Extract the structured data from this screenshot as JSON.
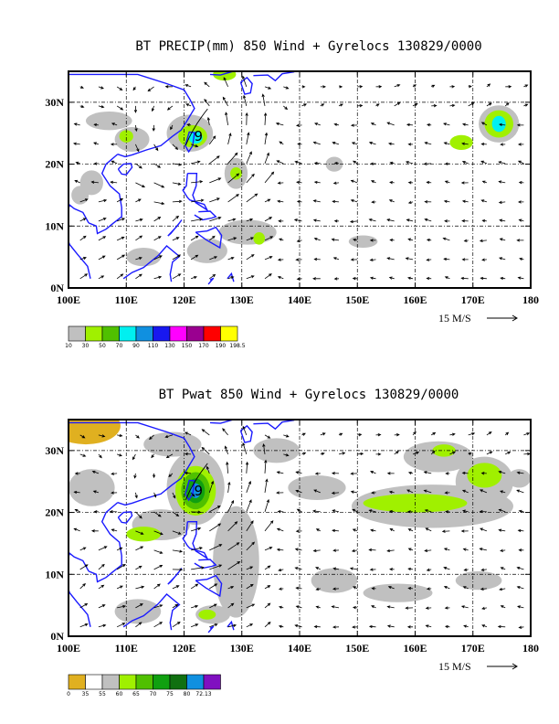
{
  "chart_data": [
    {
      "type": "heatmap",
      "title": "BT PRECIP(mm) 850 Wind + Gyrelocs 130829/0000",
      "x_tick_labels": [
        "100E",
        "110E",
        "120E",
        "130E",
        "140E",
        "150E",
        "160E",
        "170E",
        "180"
      ],
      "y_tick_labels": [
        "0N",
        "10N",
        "20N",
        "30N"
      ],
      "x_range": [
        100,
        180
      ],
      "y_range": [
        0,
        35
      ],
      "vector_scale_label": "15 M/S",
      "colorbar_labels": [
        "10",
        "30",
        "50",
        "70",
        "90",
        "110",
        "130",
        "150",
        "170",
        "190",
        "198.5"
      ],
      "colorbar_colors": [
        "#c0c0c0",
        "#a0f000",
        "#50c000",
        "#00f0f0",
        "#1090e0",
        "#1818f0",
        "#ff00ff",
        "#9a0090",
        "#ff0000",
        "#ffff00"
      ],
      "gyre_marker": {
        "label": "9",
        "lon": 122.5,
        "lat": 24.5
      },
      "precip_regions": [
        {
          "lon": 121,
          "lat": 25,
          "rx": 4,
          "ry": 3,
          "level": 0
        },
        {
          "lon": 121.5,
          "lat": 24.5,
          "rx": 2.5,
          "ry": 1.8,
          "level": 1
        },
        {
          "lon": 122,
          "lat": 24.3,
          "rx": 1.2,
          "ry": 1,
          "level": 3
        },
        {
          "lon": 111,
          "lat": 24,
          "rx": 3,
          "ry": 2,
          "level": 0
        },
        {
          "lon": 110,
          "lat": 24.5,
          "rx": 1.2,
          "ry": 1,
          "level": 1
        },
        {
          "lon": 127,
          "lat": 34.5,
          "rx": 2,
          "ry": 1,
          "level": 1
        },
        {
          "lon": 129,
          "lat": 18.5,
          "rx": 2,
          "ry": 2.5,
          "level": 0
        },
        {
          "lon": 129,
          "lat": 18.5,
          "rx": 1,
          "ry": 1,
          "level": 1
        },
        {
          "lon": 174.5,
          "lat": 26.5,
          "rx": 3.5,
          "ry": 3,
          "level": 0
        },
        {
          "lon": 174.5,
          "lat": 26.5,
          "rx": 2.5,
          "ry": 2.2,
          "level": 1
        },
        {
          "lon": 174.5,
          "lat": 26.5,
          "rx": 1.2,
          "ry": 1.3,
          "level": 3
        },
        {
          "lon": 168,
          "lat": 23.5,
          "rx": 2,
          "ry": 1.2,
          "level": 1
        },
        {
          "lon": 146,
          "lat": 20,
          "rx": 1.5,
          "ry": 1.2,
          "level": 0
        },
        {
          "lon": 131,
          "lat": 9,
          "rx": 5,
          "ry": 2,
          "level": 0
        },
        {
          "lon": 133,
          "lat": 8,
          "rx": 1,
          "ry": 1,
          "level": 1
        },
        {
          "lon": 113,
          "lat": 5,
          "rx": 3,
          "ry": 1.5,
          "level": 0
        },
        {
          "lon": 124,
          "lat": 6,
          "rx": 3.5,
          "ry": 2,
          "level": 0
        },
        {
          "lon": 151,
          "lat": 7.5,
          "rx": 2.5,
          "ry": 1,
          "level": 0
        },
        {
          "lon": 104,
          "lat": 17,
          "rx": 2,
          "ry": 2,
          "level": 0
        },
        {
          "lon": 102,
          "lat": 15,
          "rx": 1.5,
          "ry": 1.5,
          "level": 0
        },
        {
          "lon": 107,
          "lat": 27,
          "rx": 4,
          "ry": 1.5,
          "level": 0
        }
      ]
    },
    {
      "type": "heatmap",
      "title": "BT Pwat 850 Wind + Gyrelocs 130829/0000",
      "x_tick_labels": [
        "100E",
        "110E",
        "120E",
        "130E",
        "140E",
        "150E",
        "160E",
        "170E",
        "180"
      ],
      "y_tick_labels": [
        "0N",
        "10N",
        "20N",
        "30N"
      ],
      "x_range": [
        100,
        180
      ],
      "y_range": [
        0,
        35
      ],
      "vector_scale_label": "15 M/S",
      "colorbar_labels": [
        "0",
        "35",
        "55",
        "60",
        "65",
        "70",
        "75",
        "80",
        "72.13"
      ],
      "colorbar_colors": [
        "#e0b020",
        "#ffffff",
        "#c0c0c0",
        "#a0f000",
        "#50c000",
        "#10a010",
        "#107010",
        "#1090e0",
        "#8010c0"
      ],
      "gyre_marker": {
        "label": "9",
        "lon": 122.5,
        "lat": 23.5
      },
      "pwat_regions": [
        {
          "lon": 103,
          "lat": 34,
          "rx": 6,
          "ry": 3,
          "level": 0
        },
        {
          "lon": 122,
          "lat": 24,
          "rx": 5,
          "ry": 6,
          "level": 2
        },
        {
          "lon": 122,
          "lat": 23.5,
          "rx": 3.5,
          "ry": 4,
          "level": 3
        },
        {
          "lon": 122,
          "lat": 23.5,
          "rx": 2.5,
          "ry": 3,
          "level": 4
        },
        {
          "lon": 122,
          "lat": 23.5,
          "rx": 1.6,
          "ry": 2,
          "level": 5
        },
        {
          "lon": 122,
          "lat": 23.5,
          "rx": 0.9,
          "ry": 1.2,
          "level": 7
        },
        {
          "lon": 116,
          "lat": 18,
          "rx": 5,
          "ry": 2.5,
          "level": 2
        },
        {
          "lon": 113,
          "lat": 16.5,
          "rx": 3,
          "ry": 1.2,
          "level": 3
        },
        {
          "lon": 129,
          "lat": 12,
          "rx": 4,
          "ry": 9,
          "level": 2
        },
        {
          "lon": 125,
          "lat": 3.5,
          "rx": 3,
          "ry": 1.5,
          "level": 2
        },
        {
          "lon": 124,
          "lat": 3.5,
          "rx": 1.5,
          "ry": 0.8,
          "level": 3
        },
        {
          "lon": 118,
          "lat": 31,
          "rx": 5,
          "ry": 2,
          "level": 2
        },
        {
          "lon": 112,
          "lat": 4,
          "rx": 4,
          "ry": 2,
          "level": 2
        },
        {
          "lon": 163,
          "lat": 21,
          "rx": 14,
          "ry": 3.5,
          "level": 2
        },
        {
          "lon": 160,
          "lat": 21.5,
          "rx": 9,
          "ry": 1.5,
          "level": 3
        },
        {
          "lon": 172,
          "lat": 25,
          "rx": 5,
          "ry": 4,
          "level": 2
        },
        {
          "lon": 172,
          "lat": 26,
          "rx": 3,
          "ry": 2,
          "level": 3
        },
        {
          "lon": 164,
          "lat": 29,
          "rx": 6,
          "ry": 2.5,
          "level": 2
        },
        {
          "lon": 165,
          "lat": 30,
          "rx": 2,
          "ry": 1,
          "level": 3
        },
        {
          "lon": 143,
          "lat": 24,
          "rx": 5,
          "ry": 2,
          "level": 2
        },
        {
          "lon": 146,
          "lat": 9,
          "rx": 4,
          "ry": 2,
          "level": 2
        },
        {
          "lon": 157,
          "lat": 7,
          "rx": 6,
          "ry": 1.5,
          "level": 2
        },
        {
          "lon": 171,
          "lat": 9,
          "rx": 4,
          "ry": 1.5,
          "level": 2
        },
        {
          "lon": 136,
          "lat": 30,
          "rx": 4,
          "ry": 2,
          "level": 2
        },
        {
          "lon": 104,
          "lat": 24,
          "rx": 4,
          "ry": 3,
          "level": 2
        },
        {
          "lon": 178,
          "lat": 25.5,
          "rx": 2,
          "ry": 1.5,
          "level": 2
        }
      ]
    }
  ]
}
